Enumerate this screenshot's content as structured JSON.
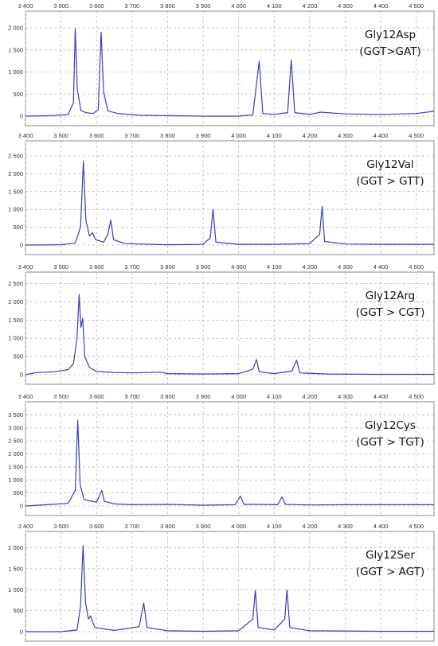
{
  "chart_data": [
    {
      "type": "line",
      "label_line1": "Gly12Asp",
      "label_line2": "(GGT>GAT)",
      "xlim": [
        3400,
        4550
      ],
      "x_ticks": [
        "3 400",
        "3 500",
        "3 600",
        "3 700",
        "3 800",
        "3 900",
        "4 000",
        "4 100",
        "4 200",
        "4 300",
        "4 400",
        "4 500"
      ],
      "ylim": [
        0,
        2200
      ],
      "y_ticks": [
        {
          "v": 0,
          "label": "0"
        },
        {
          "v": 500,
          "label": "500"
        },
        {
          "v": 1000,
          "label": "1 000"
        },
        {
          "v": 1500,
          "label": "1 500"
        },
        {
          "v": 2000,
          "label": "2 000"
        }
      ],
      "grid": true,
      "series": [
        {
          "color": "#3b3bbd",
          "points": [
            [
              3400,
              0
            ],
            [
              3480,
              10
            ],
            [
              3520,
              40
            ],
            [
              3535,
              300
            ],
            [
              3540,
              1980
            ],
            [
              3546,
              600
            ],
            [
              3556,
              130
            ],
            [
              3570,
              80
            ],
            [
              3590,
              60
            ],
            [
              3605,
              150
            ],
            [
              3613,
              1900
            ],
            [
              3620,
              550
            ],
            [
              3632,
              120
            ],
            [
              3660,
              60
            ],
            [
              3720,
              20
            ],
            [
              3800,
              10
            ],
            [
              3900,
              0
            ],
            [
              4000,
              0
            ],
            [
              4040,
              30
            ],
            [
              4058,
              1250
            ],
            [
              4068,
              60
            ],
            [
              4100,
              40
            ],
            [
              4138,
              80
            ],
            [
              4148,
              1270
            ],
            [
              4158,
              80
            ],
            [
              4200,
              40
            ],
            [
              4230,
              90
            ],
            [
              4300,
              50
            ],
            [
              4400,
              40
            ],
            [
              4500,
              60
            ],
            [
              4550,
              110
            ]
          ]
        }
      ]
    },
    {
      "type": "line",
      "label_line1": "Gly12Val",
      "label_line2": "(GGT > GTT)",
      "xlim": [
        3400,
        4550
      ],
      "x_ticks": [
        "3 400",
        "3 500",
        "3 600",
        "3 700",
        "3 800",
        "3 900",
        "4 000",
        "4 100",
        "4 200",
        "4 300",
        "4 400",
        "4 500"
      ],
      "ylim": [
        0,
        2700
      ],
      "y_ticks": [
        {
          "v": 0,
          "label": "0"
        },
        {
          "v": 500,
          "label": "500"
        },
        {
          "v": 1000,
          "label": "1 000"
        },
        {
          "v": 1500,
          "label": "1 500"
        },
        {
          "v": 2000,
          "label": "2 000"
        },
        {
          "v": 2500,
          "label": "2 500"
        }
      ],
      "grid": true,
      "series": [
        {
          "color": "#3b3bbd",
          "points": [
            [
              3400,
              0
            ],
            [
              3500,
              10
            ],
            [
              3540,
              60
            ],
            [
              3555,
              500
            ],
            [
              3563,
              2350
            ],
            [
              3570,
              700
            ],
            [
              3580,
              250
            ],
            [
              3588,
              350
            ],
            [
              3597,
              150
            ],
            [
              3620,
              80
            ],
            [
              3632,
              300
            ],
            [
              3640,
              700
            ],
            [
              3648,
              150
            ],
            [
              3680,
              40
            ],
            [
              3800,
              10
            ],
            [
              3900,
              20
            ],
            [
              3920,
              200
            ],
            [
              3928,
              1000
            ],
            [
              3936,
              80
            ],
            [
              4000,
              20
            ],
            [
              4100,
              20
            ],
            [
              4200,
              40
            ],
            [
              4228,
              300
            ],
            [
              4235,
              1080
            ],
            [
              4242,
              100
            ],
            [
              4300,
              30
            ],
            [
              4400,
              20
            ],
            [
              4550,
              20
            ]
          ]
        }
      ]
    },
    {
      "type": "line",
      "label_line1": "Gly12Arg",
      "label_line2": "(GGT > CGT)",
      "xlim": [
        3400,
        4550
      ],
      "x_ticks": [
        "3 400",
        "3 500",
        "3 600",
        "3 700",
        "3 800",
        "3 900",
        "4 000",
        "4 100",
        "4 200",
        "4 300",
        "4 400",
        "4 500"
      ],
      "ylim": [
        0,
        2600
      ],
      "y_ticks": [
        {
          "v": 0,
          "label": "0"
        },
        {
          "v": 500,
          "label": "500"
        },
        {
          "v": 1000,
          "label": "1 000"
        },
        {
          "v": 1500,
          "label": "1 500"
        },
        {
          "v": 2000,
          "label": "2 000"
        },
        {
          "v": 2500,
          "label": "2 500"
        }
      ],
      "grid": true,
      "series": [
        {
          "color": "#3b3bbd",
          "points": [
            [
              3400,
              0
            ],
            [
              3430,
              60
            ],
            [
              3480,
              80
            ],
            [
              3520,
              140
            ],
            [
              3535,
              300
            ],
            [
              3545,
              1000
            ],
            [
              3551,
              2200
            ],
            [
              3556,
              1300
            ],
            [
              3561,
              1550
            ],
            [
              3567,
              500
            ],
            [
              3580,
              200
            ],
            [
              3600,
              90
            ],
            [
              3650,
              60
            ],
            [
              3700,
              50
            ],
            [
              3780,
              70
            ],
            [
              3800,
              30
            ],
            [
              3900,
              20
            ],
            [
              4000,
              30
            ],
            [
              4040,
              150
            ],
            [
              4050,
              420
            ],
            [
              4058,
              80
            ],
            [
              4100,
              30
            ],
            [
              4150,
              100
            ],
            [
              4163,
              400
            ],
            [
              4172,
              50
            ],
            [
              4250,
              20
            ],
            [
              4400,
              10
            ],
            [
              4550,
              10
            ]
          ]
        }
      ]
    },
    {
      "type": "line",
      "label_line1": "Gly12Cys",
      "label_line2": "(GGT > TGT)",
      "xlim": [
        3400,
        4550
      ],
      "x_ticks": [
        "3 400",
        "3 500",
        "3 600",
        "3 700",
        "3 800",
        "3 900",
        "4 000",
        "4 100",
        "4 200",
        "4 300",
        "4 400",
        "4 500"
      ],
      "ylim": [
        0,
        3700
      ],
      "y_ticks": [
        {
          "v": 0,
          "label": "0"
        },
        {
          "v": 500,
          "label": "500"
        },
        {
          "v": 1000,
          "label": "1 000"
        },
        {
          "v": 1500,
          "label": "1 500"
        },
        {
          "v": 2000,
          "label": "2 000"
        },
        {
          "v": 2500,
          "label": "2 500"
        },
        {
          "v": 3000,
          "label": "3 000"
        },
        {
          "v": 3500,
          "label": "3 500"
        }
      ],
      "grid": true,
      "series": [
        {
          "color": "#3b3bbd",
          "points": [
            [
              3400,
              0
            ],
            [
              3460,
              50
            ],
            [
              3520,
              100
            ],
            [
              3540,
              600
            ],
            [
              3547,
              3300
            ],
            [
              3554,
              800
            ],
            [
              3565,
              250
            ],
            [
              3580,
              200
            ],
            [
              3600,
              150
            ],
            [
              3615,
              600
            ],
            [
              3622,
              180
            ],
            [
              3650,
              80
            ],
            [
              3700,
              50
            ],
            [
              3800,
              60
            ],
            [
              3900,
              30
            ],
            [
              3990,
              50
            ],
            [
              4005,
              380
            ],
            [
              4015,
              60
            ],
            [
              4050,
              60
            ],
            [
              4110,
              50
            ],
            [
              4122,
              350
            ],
            [
              4132,
              60
            ],
            [
              4200,
              40
            ],
            [
              4300,
              50
            ],
            [
              4400,
              50
            ],
            [
              4550,
              50
            ]
          ]
        }
      ]
    },
    {
      "type": "line",
      "label_line1": "Gly12Ser",
      "label_line2": "(GGT > AGT)",
      "xlim": [
        3400,
        4550
      ],
      "x_ticks": [
        "3 400",
        "3 500",
        "3 600",
        "3 700",
        "3 800",
        "3 900",
        "4 000",
        "4 100",
        "4 200",
        "4 300",
        "4 400",
        "4 500"
      ],
      "ylim": [
        0,
        2200
      ],
      "y_ticks": [
        {
          "v": 0,
          "label": "0"
        },
        {
          "v": 500,
          "label": "500"
        },
        {
          "v": 1000,
          "label": "1 000"
        },
        {
          "v": 1500,
          "label": "1 500"
        },
        {
          "v": 2000,
          "label": "2 000"
        }
      ],
      "grid": true,
      "series": [
        {
          "color": "#3b3bbd",
          "points": [
            [
              3400,
              0
            ],
            [
              3500,
              0
            ],
            [
              3545,
              40
            ],
            [
              3555,
              600
            ],
            [
              3562,
              2050
            ],
            [
              3569,
              700
            ],
            [
              3577,
              300
            ],
            [
              3583,
              380
            ],
            [
              3595,
              100
            ],
            [
              3650,
              30
            ],
            [
              3720,
              120
            ],
            [
              3733,
              680
            ],
            [
              3742,
              100
            ],
            [
              3800,
              20
            ],
            [
              3900,
              10
            ],
            [
              4000,
              20
            ],
            [
              4040,
              300
            ],
            [
              4047,
              980
            ],
            [
              4055,
              100
            ],
            [
              4100,
              40
            ],
            [
              4130,
              300
            ],
            [
              4136,
              1000
            ],
            [
              4144,
              100
            ],
            [
              4200,
              20
            ],
            [
              4400,
              10
            ],
            [
              4550,
              10
            ]
          ]
        }
      ]
    }
  ]
}
